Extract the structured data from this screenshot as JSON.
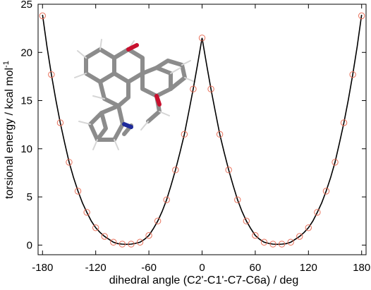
{
  "chart_data": {
    "type": "scatter",
    "title": "",
    "xlabel": "dihedral angle (C2'-C1'-C7-C6a) / deg",
    "ylabel": "torsional energy / kcal mol",
    "ylabel_superscript": "-1",
    "xlim": [
      -185,
      185
    ],
    "ylim": [
      -1,
      25
    ],
    "x_ticks": [
      -180,
      -120,
      -60,
      0,
      60,
      120,
      180
    ],
    "y_ticks": [
      0,
      5,
      10,
      15,
      20,
      25
    ],
    "grid": false,
    "legend": "none",
    "colors": {
      "points": "#e8705a",
      "curve": "#000000",
      "axes": "#000000"
    },
    "inset": "molecular structure (stick model) at top-left",
    "series": [
      {
        "type": "scatter",
        "marker": "open-circle",
        "x": [
          -180,
          -170,
          -160,
          -150,
          -140,
          -130,
          -120,
          -110,
          -100,
          -90,
          -80,
          -70,
          -60,
          -50,
          -40,
          -30,
          -20,
          -10,
          0,
          10,
          20,
          30,
          40,
          50,
          60,
          70,
          80,
          90,
          100,
          110,
          120,
          130,
          140,
          150,
          160,
          170,
          180
        ],
        "y": [
          23.8,
          17.7,
          12.7,
          8.6,
          5.6,
          3.4,
          1.8,
          0.9,
          0.3,
          0.1,
          0.1,
          0.3,
          1.0,
          2.5,
          4.7,
          7.8,
          11.5,
          16.2,
          21.5,
          16.2,
          11.5,
          7.8,
          4.7,
          2.5,
          1.0,
          0.3,
          0.1,
          0.1,
          0.3,
          0.9,
          1.8,
          3.4,
          5.6,
          8.6,
          12.7,
          17.7,
          23.8
        ]
      },
      {
        "type": "line",
        "x": [
          -180,
          -175,
          -170,
          -165,
          -160,
          -155,
          -150,
          -145,
          -140,
          -135,
          -130,
          -125,
          -120,
          -115,
          -110,
          -105,
          -100,
          -95,
          -90,
          -85,
          -80,
          -75,
          -70,
          -65,
          -60,
          -55,
          -50,
          -45,
          -40,
          -35,
          -30,
          -25,
          -20,
          -15,
          -10,
          -5,
          0,
          5,
          10,
          15,
          20,
          25,
          30,
          35,
          40,
          45,
          50,
          55,
          60,
          65,
          70,
          75,
          80,
          85,
          90,
          95,
          100,
          105,
          110,
          115,
          120,
          125,
          130,
          135,
          140,
          145,
          150,
          155,
          160,
          165,
          170,
          175,
          180
        ],
        "y": [
          23.9,
          20.6,
          17.7,
          15.1,
          12.7,
          10.6,
          8.6,
          7.0,
          5.6,
          4.4,
          3.4,
          2.5,
          1.8,
          1.3,
          0.9,
          0.6,
          0.3,
          0.15,
          0.1,
          0.08,
          0.1,
          0.18,
          0.3,
          0.6,
          1.0,
          1.7,
          2.5,
          3.5,
          4.7,
          6.2,
          7.8,
          9.6,
          11.5,
          13.8,
          16.2,
          18.8,
          21.5,
          18.8,
          16.2,
          13.8,
          11.5,
          9.6,
          7.8,
          6.2,
          4.7,
          3.5,
          2.5,
          1.7,
          1.0,
          0.6,
          0.3,
          0.18,
          0.1,
          0.08,
          0.1,
          0.15,
          0.3,
          0.6,
          0.9,
          1.3,
          1.8,
          2.5,
          3.4,
          4.4,
          5.6,
          7.0,
          8.6,
          10.6,
          12.7,
          15.1,
          17.7,
          20.6,
          23.9
        ]
      }
    ]
  }
}
